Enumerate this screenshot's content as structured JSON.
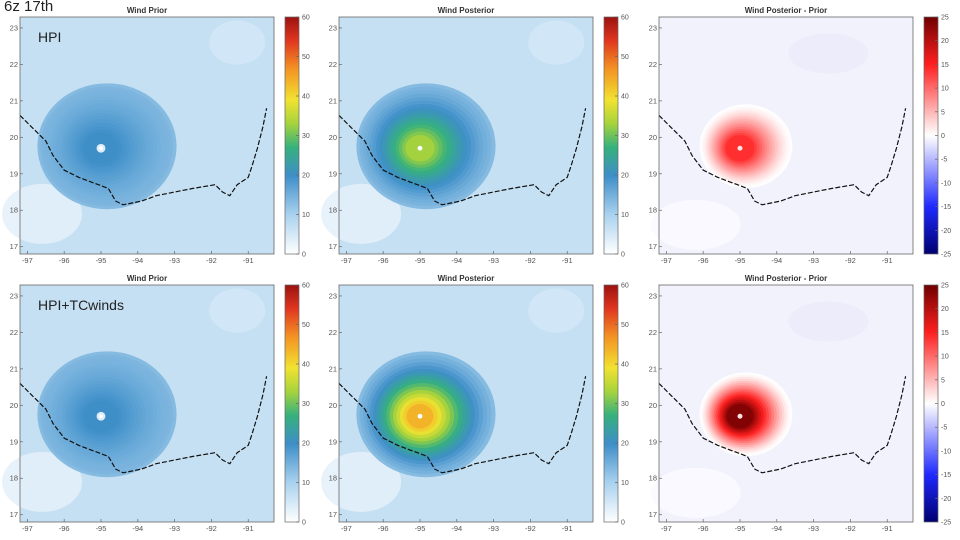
{
  "overlay_title": "6z 17th",
  "row_labels": [
    "HPI",
    "HPI+TCwinds"
  ],
  "chart_data": [
    {
      "type": "heatmap",
      "row": "HPI",
      "title": "Wind Prior",
      "x_ticks": [
        "-97",
        "-96",
        "-95",
        "-94",
        "-93",
        "-92",
        "-91"
      ],
      "y_ticks": [
        "23",
        "22",
        "21",
        "20",
        "19",
        "18",
        "17"
      ],
      "xlim": [
        -97.2,
        -90.3
      ],
      "ylim": [
        16.8,
        23.3
      ],
      "colorbar_ticks": [
        "60",
        "50",
        "40",
        "30",
        "20",
        "10",
        "0"
      ],
      "colorbar_range": [
        0,
        60
      ],
      "cmap": "wind",
      "peak": 20,
      "eye_radius": 0.12,
      "ring_radius": 0.45
    },
    {
      "type": "heatmap",
      "row": "HPI",
      "title": "Wind Posterior",
      "x_ticks": [
        "-97",
        "-96",
        "-95",
        "-94",
        "-93",
        "-92",
        "-91"
      ],
      "y_ticks": [
        "23",
        "22",
        "21",
        "20",
        "19",
        "18",
        "17"
      ],
      "xlim": [
        -97.2,
        -90.3
      ],
      "ylim": [
        16.8,
        23.3
      ],
      "colorbar_ticks": [
        "60",
        "50",
        "40",
        "30",
        "20",
        "10",
        "0"
      ],
      "colorbar_range": [
        0,
        60
      ],
      "cmap": "wind",
      "peak": 33,
      "eye_radius": 0.06,
      "ring_radius": 0.38
    },
    {
      "type": "heatmap",
      "row": "HPI",
      "title": "Wind Posterior - Prior",
      "x_ticks": [
        "-97",
        "-96",
        "-95",
        "-94",
        "-93",
        "-92",
        "-91"
      ],
      "y_ticks": [
        "23",
        "22",
        "21",
        "20",
        "19",
        "18",
        "17"
      ],
      "xlim": [
        -97.2,
        -90.3
      ],
      "ylim": [
        16.8,
        23.3
      ],
      "colorbar_ticks": [
        "25",
        "20",
        "15",
        "10",
        "5",
        "0",
        "-5",
        "-10",
        "-15",
        "-20",
        "-25"
      ],
      "colorbar_range": [
        -25,
        25
      ],
      "cmap": "diff",
      "peak": 14,
      "eye_radius": 0.06,
      "ring_radius": 0.38
    },
    {
      "type": "heatmap",
      "row": "HPI+TCwinds",
      "title": "Wind Prior",
      "x_ticks": [
        "-97",
        "-96",
        "-95",
        "-94",
        "-93",
        "-92",
        "-91"
      ],
      "y_ticks": [
        "23",
        "22",
        "21",
        "20",
        "19",
        "18",
        "17"
      ],
      "xlim": [
        -97.2,
        -90.3
      ],
      "ylim": [
        16.8,
        23.3
      ],
      "colorbar_ticks": [
        "60",
        "50",
        "40",
        "30",
        "20",
        "10",
        "0"
      ],
      "colorbar_range": [
        0,
        60
      ],
      "cmap": "wind",
      "peak": 20,
      "eye_radius": 0.12,
      "ring_radius": 0.45
    },
    {
      "type": "heatmap",
      "row": "HPI+TCwinds",
      "title": "Wind Posterior",
      "x_ticks": [
        "-97",
        "-96",
        "-95",
        "-94",
        "-93",
        "-92",
        "-91"
      ],
      "y_ticks": [
        "23",
        "22",
        "21",
        "20",
        "19",
        "18",
        "17"
      ],
      "xlim": [
        -97.2,
        -90.3
      ],
      "ylim": [
        16.8,
        23.3
      ],
      "colorbar_ticks": [
        "60",
        "50",
        "40",
        "30",
        "20",
        "10",
        "0"
      ],
      "colorbar_range": [
        0,
        60
      ],
      "cmap": "wind",
      "peak": 44,
      "eye_radius": 0.05,
      "ring_radius": 0.35
    },
    {
      "type": "heatmap",
      "row": "HPI+TCwinds",
      "title": "Wind Posterior - Prior",
      "x_ticks": [
        "-97",
        "-96",
        "-95",
        "-94",
        "-93",
        "-92",
        "-91"
      ],
      "y_ticks": [
        "23",
        "22",
        "21",
        "20",
        "19",
        "18",
        "17"
      ],
      "xlim": [
        -97.2,
        -90.3
      ],
      "ylim": [
        16.8,
        23.3
      ],
      "colorbar_ticks": [
        "25",
        "20",
        "15",
        "10",
        "5",
        "0",
        "-5",
        "-10",
        "-15",
        "-20",
        "-25"
      ],
      "colorbar_range": [
        -25,
        25
      ],
      "cmap": "diff",
      "peak": 24,
      "eye_radius": 0.05,
      "ring_radius": 0.35
    }
  ],
  "storm_center": {
    "lon": -95.0,
    "lat": 19.7
  },
  "coastline": [
    [
      -97.2,
      20.6
    ],
    [
      -96.9,
      20.3
    ],
    [
      -96.5,
      19.9
    ],
    [
      -96.3,
      19.5
    ],
    [
      -96.0,
      19.1
    ],
    [
      -95.6,
      18.9
    ],
    [
      -95.2,
      18.75
    ],
    [
      -94.8,
      18.6
    ],
    [
      -94.6,
      18.25
    ],
    [
      -94.4,
      18.15
    ],
    [
      -93.9,
      18.25
    ],
    [
      -93.5,
      18.4
    ],
    [
      -93.0,
      18.5
    ],
    [
      -92.5,
      18.6
    ],
    [
      -91.9,
      18.7
    ],
    [
      -91.7,
      18.5
    ],
    [
      -91.5,
      18.4
    ],
    [
      -91.3,
      18.7
    ],
    [
      -91.0,
      18.9
    ],
    [
      -90.9,
      19.2
    ],
    [
      -90.75,
      19.7
    ],
    [
      -90.6,
      20.3
    ],
    [
      -90.5,
      20.8
    ]
  ]
}
